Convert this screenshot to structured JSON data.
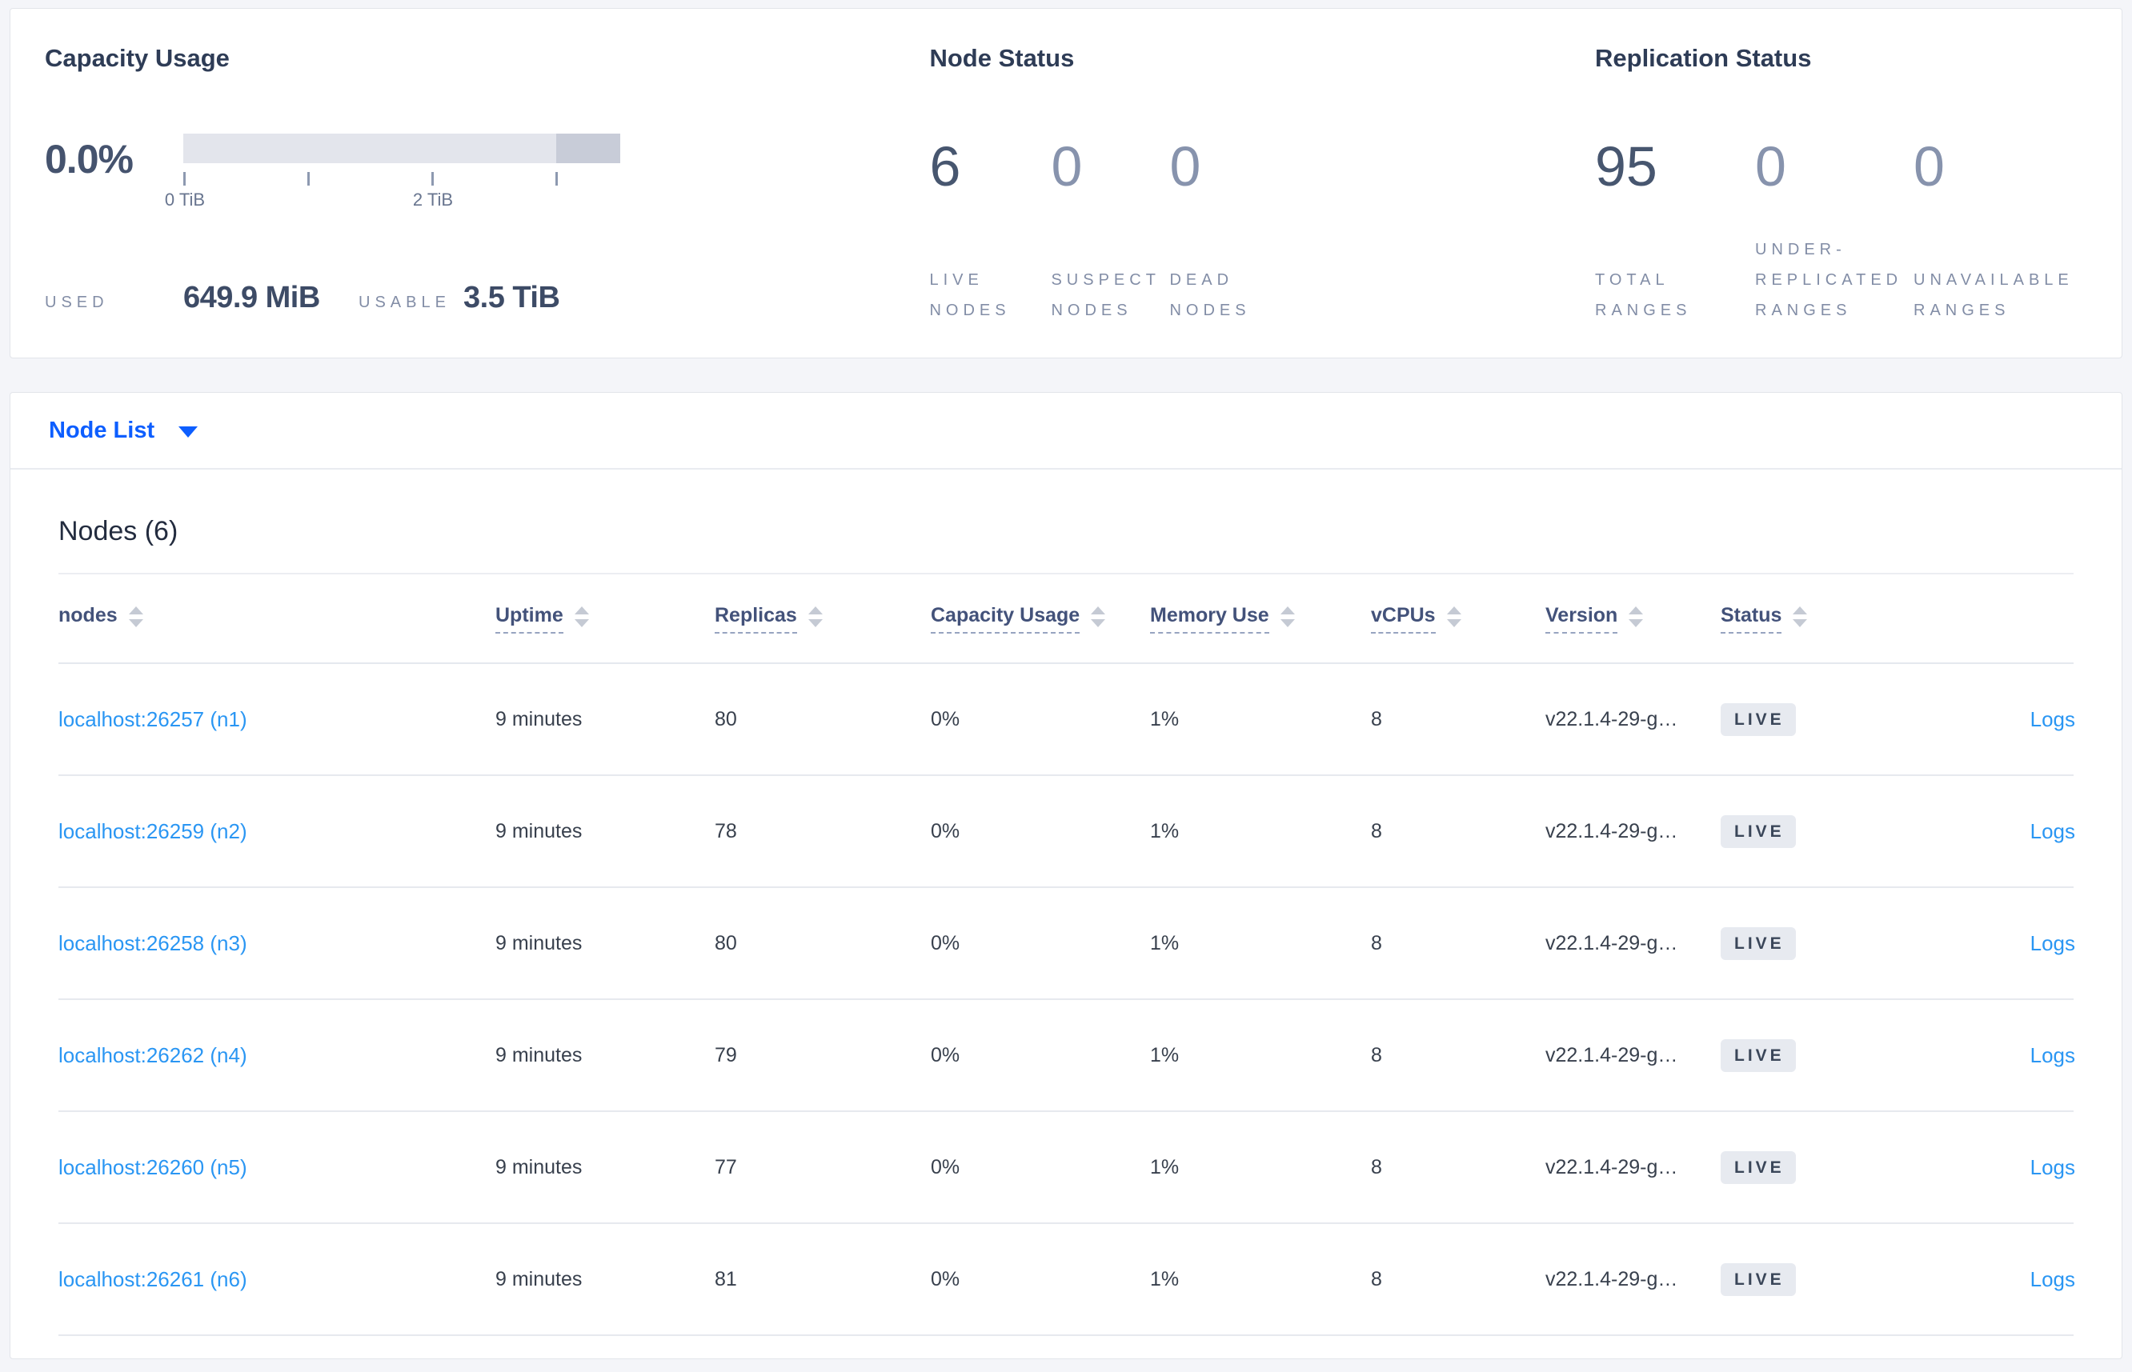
{
  "colors": {
    "page_background": "#f4f5f9",
    "accent_blue": "#0d5eff",
    "link_blue": "#2a96f3",
    "badge_background": "#e7eaf0",
    "bar_track": "#e3e5ec",
    "bar_dark_segment": "#c8ccd8"
  },
  "summary": {
    "capacity": {
      "title": "Capacity Usage",
      "percent": "0.0%",
      "axis_ticks": [
        "0 TiB",
        "2 TiB"
      ],
      "used_label": "USED",
      "used_value": "649.9 MiB",
      "usable_label": "USABLE",
      "usable_value": "3.5 TiB"
    },
    "node_status": {
      "title": "Node Status",
      "stats": [
        {
          "value": "6",
          "label": "LIVE NODES"
        },
        {
          "value": "0",
          "label": "SUSPECT NODES"
        },
        {
          "value": "0",
          "label": "DEAD NODES"
        }
      ]
    },
    "replication": {
      "title": "Replication Status",
      "stats": [
        {
          "value": "95",
          "label": "TOTAL RANGES"
        },
        {
          "value": "0",
          "label": "UNDER-REPLICATED RANGES"
        },
        {
          "value": "0",
          "label": "UNAVAILABLE RANGES"
        }
      ]
    }
  },
  "view_selector": {
    "label": "Node List"
  },
  "table": {
    "title": "Nodes (6)",
    "columns": [
      {
        "label": "nodes",
        "sortable": true,
        "underline": false
      },
      {
        "label": "Uptime",
        "sortable": true,
        "underline": true
      },
      {
        "label": "Replicas",
        "sortable": true,
        "underline": true
      },
      {
        "label": "Capacity Usage",
        "sortable": true,
        "underline": true
      },
      {
        "label": "Memory Use",
        "sortable": true,
        "underline": true
      },
      {
        "label": "vCPUs",
        "sortable": true,
        "underline": true
      },
      {
        "label": "Version",
        "sortable": true,
        "underline": true
      },
      {
        "label": "Status",
        "sortable": true,
        "underline": true
      },
      {
        "label": "",
        "sortable": false,
        "underline": false
      }
    ],
    "rows": [
      {
        "node": "localhost:26257 (n1)",
        "uptime": "9 minutes",
        "replicas": "80",
        "capacity_usage": "0%",
        "memory_use": "1%",
        "vcpus": "8",
        "version": "v22.1.4-29-g…",
        "status": "LIVE",
        "logs": "Logs"
      },
      {
        "node": "localhost:26259 (n2)",
        "uptime": "9 minutes",
        "replicas": "78",
        "capacity_usage": "0%",
        "memory_use": "1%",
        "vcpus": "8",
        "version": "v22.1.4-29-g…",
        "status": "LIVE",
        "logs": "Logs"
      },
      {
        "node": "localhost:26258 (n3)",
        "uptime": "9 minutes",
        "replicas": "80",
        "capacity_usage": "0%",
        "memory_use": "1%",
        "vcpus": "8",
        "version": "v22.1.4-29-g…",
        "status": "LIVE",
        "logs": "Logs"
      },
      {
        "node": "localhost:26262 (n4)",
        "uptime": "9 minutes",
        "replicas": "79",
        "capacity_usage": "0%",
        "memory_use": "1%",
        "vcpus": "8",
        "version": "v22.1.4-29-g…",
        "status": "LIVE",
        "logs": "Logs"
      },
      {
        "node": "localhost:26260 (n5)",
        "uptime": "9 minutes",
        "replicas": "77",
        "capacity_usage": "0%",
        "memory_use": "1%",
        "vcpus": "8",
        "version": "v22.1.4-29-g…",
        "status": "LIVE",
        "logs": "Logs"
      },
      {
        "node": "localhost:26261 (n6)",
        "uptime": "9 minutes",
        "replicas": "81",
        "capacity_usage": "0%",
        "memory_use": "1%",
        "vcpus": "8",
        "version": "v22.1.4-29-g…",
        "status": "LIVE",
        "logs": "Logs"
      }
    ]
  }
}
